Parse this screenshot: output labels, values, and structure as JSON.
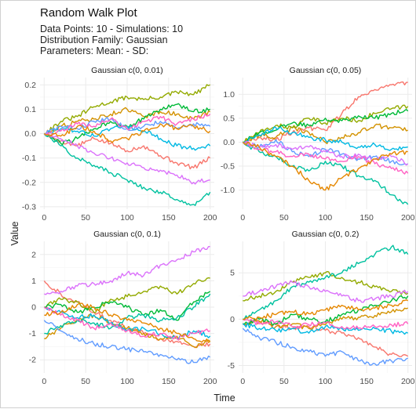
{
  "title": "Random Walk Plot",
  "subtitle_lines": [
    "Data Points: 10 - Simulations: 10",
    "Distribution Family: Gaussian",
    "Parameters: Mean:  - SD:"
  ],
  "xlabel": "Time",
  "ylabel": "Value",
  "colors": {
    "series": [
      "#F8766D",
      "#D39200",
      "#93AA00",
      "#00BA38",
      "#00C19F",
      "#00B9E3",
      "#619CFF",
      "#DB72FB",
      "#FF61C3",
      "#E58700"
    ],
    "grid_major": "#ebebeb",
    "grid_minor": "#f5f5f5",
    "tick_text": "#4d4d4d"
  },
  "chart_data": [
    {
      "type": "line",
      "title": "Gaussian c(0, 0.01)",
      "xlim": [
        -5,
        205
      ],
      "ylim": [
        -0.31,
        0.23
      ],
      "xticks": [
        0,
        50,
        100,
        150,
        200
      ],
      "yticks": [
        -0.3,
        -0.2,
        -0.1,
        0.0,
        0.1,
        0.2
      ],
      "ytick_labels": [
        "-0.3",
        "-0.2",
        "-0.1",
        "0.0",
        "0.1",
        "0.2"
      ],
      "grid": true,
      "x": [
        0,
        20,
        40,
        60,
        80,
        100,
        120,
        140,
        160,
        180,
        200
      ],
      "series": [
        {
          "values": [
            0.0,
            -0.03,
            -0.05,
            -0.02,
            -0.04,
            -0.07,
            -0.05,
            -0.09,
            -0.12,
            -0.14,
            -0.1
          ]
        },
        {
          "values": [
            0.0,
            0.03,
            0.05,
            0.06,
            0.08,
            0.1,
            0.07,
            0.09,
            0.08,
            0.06,
            0.09
          ]
        },
        {
          "values": [
            0.0,
            0.05,
            0.07,
            0.11,
            0.13,
            0.15,
            0.14,
            0.15,
            0.17,
            0.16,
            0.2
          ]
        },
        {
          "values": [
            0.0,
            -0.04,
            -0.02,
            0.02,
            0.05,
            0.03,
            0.06,
            0.1,
            0.12,
            0.09,
            0.1
          ]
        },
        {
          "values": [
            0.0,
            -0.05,
            -0.1,
            -0.13,
            -0.16,
            -0.19,
            -0.22,
            -0.24,
            -0.27,
            -0.29,
            -0.24
          ]
        },
        {
          "values": [
            0.0,
            0.02,
            0.01,
            -0.01,
            0.02,
            0.03,
            0.01,
            -0.02,
            -0.05,
            -0.06,
            -0.05
          ]
        },
        {
          "values": [
            0.0,
            0.03,
            0.02,
            0.05,
            0.06,
            0.02,
            0.03,
            0.05,
            0.02,
            0.04,
            0.03
          ]
        },
        {
          "values": [
            0.0,
            -0.02,
            -0.05,
            -0.08,
            -0.1,
            -0.12,
            -0.14,
            -0.15,
            -0.17,
            -0.2,
            -0.19
          ]
        },
        {
          "values": [
            0.0,
            0.01,
            0.04,
            0.03,
            0.06,
            0.02,
            0.05,
            0.07,
            0.04,
            0.06,
            0.08
          ]
        },
        {
          "values": [
            0.0,
            -0.01,
            0.03,
            0.01,
            -0.03,
            -0.02,
            0.01,
            0.04,
            0.02,
            0.03,
            0.01
          ]
        }
      ]
    },
    {
      "type": "line",
      "title": "Gaussian c(0, 0.05)",
      "xlim": [
        -5,
        205
      ],
      "ylim": [
        -1.4,
        1.35
      ],
      "xticks": [
        0,
        50,
        100,
        150,
        200
      ],
      "yticks": [
        -1.0,
        -0.5,
        0.0,
        0.5,
        1.0
      ],
      "ytick_labels": [
        "-1.0",
        "-0.5",
        "0.0",
        "0.5",
        "1.0"
      ],
      "grid": true,
      "x": [
        0,
        20,
        40,
        60,
        80,
        100,
        120,
        140,
        160,
        180,
        200
      ],
      "series": [
        {
          "values": [
            0.0,
            0.1,
            0.05,
            0.2,
            0.3,
            0.25,
            0.6,
            0.95,
            1.1,
            1.2,
            1.25
          ]
        },
        {
          "values": [
            0.0,
            0.15,
            0.1,
            0.3,
            0.2,
            0.0,
            0.1,
            0.2,
            0.35,
            0.3,
            0.25
          ]
        },
        {
          "values": [
            0.0,
            0.2,
            0.35,
            0.3,
            0.5,
            0.4,
            0.5,
            0.45,
            0.6,
            0.7,
            0.75
          ]
        },
        {
          "values": [
            0.0,
            0.2,
            0.25,
            0.4,
            0.35,
            0.5,
            0.45,
            0.55,
            0.5,
            0.6,
            0.65
          ]
        },
        {
          "values": [
            0.0,
            -0.2,
            -0.3,
            -0.5,
            -0.6,
            -0.4,
            -0.5,
            -0.7,
            -0.8,
            -1.1,
            -1.3
          ]
        },
        {
          "values": [
            0.0,
            0.15,
            0.3,
            0.2,
            0.1,
            0.05,
            0.0,
            -0.1,
            -0.05,
            -0.15,
            -0.1
          ]
        },
        {
          "values": [
            0.0,
            -0.1,
            0.05,
            -0.2,
            -0.3,
            -0.15,
            -0.25,
            -0.35,
            -0.3,
            -0.4,
            -0.45
          ]
        },
        {
          "values": [
            0.0,
            -0.1,
            -0.05,
            -0.15,
            -0.1,
            -0.2,
            -0.3,
            -0.25,
            -0.35,
            -0.3,
            -0.45
          ]
        },
        {
          "values": [
            0.0,
            -0.15,
            -0.2,
            -0.3,
            -0.25,
            -0.35,
            -0.4,
            -0.3,
            -0.45,
            -0.55,
            -0.65
          ]
        },
        {
          "values": [
            0.0,
            -0.1,
            -0.3,
            -0.5,
            -0.8,
            -1.0,
            -0.75,
            -0.55,
            -0.35,
            -0.25,
            -0.2
          ]
        }
      ]
    },
    {
      "type": "line",
      "title": "Gaussian c(0, 0.1)",
      "xlim": [
        -5,
        205
      ],
      "ylim": [
        -2.5,
        2.5
      ],
      "xticks": [
        0,
        50,
        100,
        150,
        200
      ],
      "yticks": [
        -2,
        -1,
        0,
        1,
        2
      ],
      "ytick_labels": [
        "-2",
        "-1",
        "0",
        "1",
        "2"
      ],
      "grid": true,
      "x": [
        0,
        20,
        40,
        60,
        80,
        100,
        120,
        140,
        160,
        180,
        200
      ],
      "series": [
        {
          "values": [
            1.0,
            0.5,
            0.2,
            -0.2,
            -0.5,
            -0.8,
            -1.0,
            -1.2,
            -1.3,
            -1.5,
            -1.4
          ]
        },
        {
          "values": [
            -1.2,
            -0.8,
            -0.5,
            -0.3,
            -0.6,
            -0.8,
            -1.0,
            -1.2,
            -1.1,
            -1.5,
            -1.3
          ]
        },
        {
          "values": [
            0.0,
            0.3,
            0.2,
            -0.2,
            0.3,
            0.4,
            0.6,
            0.8,
            0.5,
            0.9,
            1.1
          ]
        },
        {
          "values": [
            0.0,
            0.1,
            -0.2,
            0.0,
            0.2,
            0.0,
            -0.3,
            -0.1,
            -0.5,
            0.2,
            0.6
          ]
        },
        {
          "values": [
            -1.0,
            -0.7,
            -0.5,
            -0.6,
            -0.8,
            -0.4,
            -0.3,
            -0.5,
            -0.4,
            0.0,
            0.5
          ]
        },
        {
          "values": [
            0.0,
            -0.2,
            -0.4,
            -0.3,
            -0.6,
            -0.9,
            -0.8,
            -1.0,
            -1.2,
            -0.9,
            -1.1
          ]
        },
        {
          "values": [
            -0.5,
            -0.9,
            -1.2,
            -1.4,
            -1.5,
            -1.6,
            -1.7,
            -1.8,
            -2.0,
            -2.1,
            -1.9
          ]
        },
        {
          "values": [
            0.5,
            0.6,
            0.8,
            0.9,
            1.0,
            1.3,
            1.2,
            1.6,
            1.8,
            2.1,
            2.3
          ]
        },
        {
          "values": [
            0.0,
            -0.3,
            -0.5,
            -0.8,
            -0.6,
            -0.9,
            -1.1,
            -1.0,
            -1.2,
            -1.0,
            -0.9
          ]
        },
        {
          "values": [
            -0.3,
            -0.2,
            0.1,
            0.0,
            -0.3,
            -0.5,
            -0.6,
            -0.8,
            -1.0,
            -1.2,
            -1.3
          ]
        }
      ]
    },
    {
      "type": "line",
      "title": "Gaussian c(0, 0.2)",
      "xlim": [
        -5,
        205
      ],
      "ylim": [
        -5.8,
        8.4
      ],
      "xticks": [
        0,
        50,
        100,
        150,
        200
      ],
      "yticks": [
        -5,
        0,
        5
      ],
      "ytick_labels": [
        "-5",
        "0",
        "5"
      ],
      "grid": true,
      "x": [
        0,
        20,
        40,
        60,
        80,
        100,
        120,
        140,
        160,
        180,
        200
      ],
      "series": [
        {
          "values": [
            -0.5,
            -0.3,
            -0.6,
            -1.0,
            -0.8,
            -1.2,
            -1.5,
            -2.0,
            -3.0,
            -3.8,
            -4.0
          ]
        },
        {
          "values": [
            -0.5,
            -0.2,
            -0.8,
            -0.5,
            -1.0,
            -0.6,
            0.0,
            0.2,
            0.4,
            0.8,
            1.2
          ]
        },
        {
          "values": [
            2.0,
            2.5,
            3.0,
            4.0,
            4.5,
            5.0,
            4.5,
            4.0,
            3.5,
            3.0,
            2.8
          ]
        },
        {
          "values": [
            -0.5,
            0.0,
            -0.5,
            0.5,
            0.0,
            -0.3,
            0.5,
            1.0,
            1.5,
            2.0,
            2.5
          ]
        },
        {
          "values": [
            0.0,
            1.0,
            2.0,
            3.5,
            4.0,
            4.5,
            5.0,
            6.0,
            7.0,
            7.8,
            7.0
          ]
        },
        {
          "values": [
            -0.5,
            -1.0,
            -1.2,
            -1.0,
            -1.5,
            -0.8,
            -1.0,
            -1.2,
            -1.0,
            -1.3,
            -1.5
          ]
        },
        {
          "values": [
            -1.0,
            -2.0,
            -2.5,
            -3.0,
            -3.5,
            -4.0,
            -3.5,
            -4.5,
            -4.8,
            -4.5,
            -4.2
          ]
        },
        {
          "values": [
            2.5,
            3.0,
            3.5,
            4.0,
            3.5,
            3.0,
            2.5,
            2.0,
            2.2,
            2.5,
            3.0
          ]
        },
        {
          "values": [
            0.0,
            -0.5,
            -0.3,
            -0.8,
            -0.6,
            -0.4,
            -0.8,
            -1.0,
            -0.8,
            -0.6,
            -0.5
          ]
        },
        {
          "values": [
            0.0,
            0.2,
            0.5,
            0.8,
            0.6,
            1.0,
            1.5,
            1.0,
            1.2,
            1.5,
            2.0
          ]
        }
      ]
    }
  ]
}
